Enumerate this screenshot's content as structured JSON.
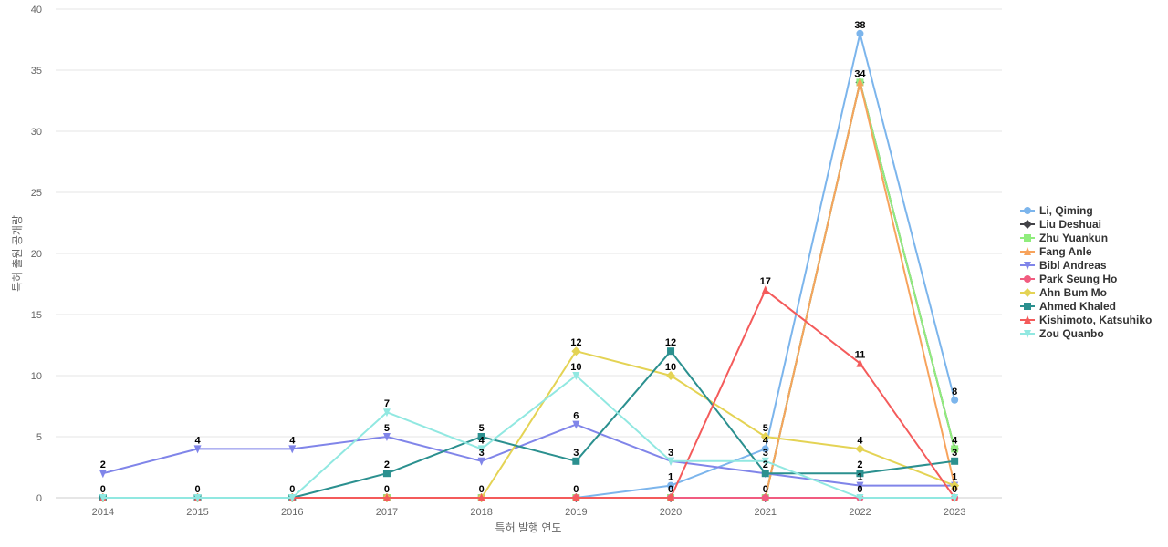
{
  "chart_data": {
    "type": "line",
    "title": "",
    "xlabel": "특허 발행 연도",
    "ylabel": "특허 출원 공개량",
    "ylim": [
      0,
      40
    ],
    "y_ticks": [
      0,
      5,
      10,
      15,
      20,
      25,
      30,
      35,
      40
    ],
    "grid": true,
    "legend_position": "right",
    "categories": [
      "2014",
      "2015",
      "2016",
      "2017",
      "2018",
      "2019",
      "2020",
      "2021",
      "2022",
      "2023"
    ],
    "series": [
      {
        "name": "Li, Qiming",
        "color": "#7cb5ec",
        "marker": "circle",
        "values": [
          0,
          0,
          0,
          0,
          0,
          0,
          1,
          4,
          38,
          8
        ]
      },
      {
        "name": "Liu Deshuai",
        "color": "#434348",
        "marker": "diamond",
        "values": [
          0,
          0,
          0,
          0,
          0,
          0,
          0,
          0,
          34,
          4
        ]
      },
      {
        "name": "Zhu Yuankun",
        "color": "#90ed7d",
        "marker": "square",
        "values": [
          0,
          0,
          0,
          0,
          0,
          0,
          0,
          0,
          34,
          4
        ]
      },
      {
        "name": "Fang Anle",
        "color": "#f7a35c",
        "marker": "triangle",
        "values": [
          0,
          0,
          0,
          0,
          0,
          0,
          0,
          0,
          34,
          1
        ]
      },
      {
        "name": "Bibl Andreas",
        "color": "#8085e9",
        "marker": "triangle-down",
        "values": [
          2,
          4,
          4,
          5,
          3,
          6,
          3,
          2,
          1,
          1
        ]
      },
      {
        "name": "Park Seung Ho",
        "color": "#f15c80",
        "marker": "circle",
        "values": [
          0,
          0,
          0,
          0,
          0,
          0,
          0,
          0,
          0,
          0
        ]
      },
      {
        "name": "Ahn Bum Mo",
        "color": "#e4d354",
        "marker": "diamond",
        "values": [
          0,
          0,
          0,
          0,
          0,
          12,
          10,
          5,
          4,
          1
        ]
      },
      {
        "name": "Ahmed Khaled",
        "color": "#2b908f",
        "marker": "square",
        "values": [
          0,
          0,
          0,
          2,
          5,
          3,
          12,
          2,
          2,
          3
        ]
      },
      {
        "name": "Kishimoto, Katsuhiko",
        "color": "#f45b5b",
        "marker": "triangle",
        "values": [
          0,
          0,
          0,
          0,
          0,
          0,
          0,
          17,
          11,
          0
        ]
      },
      {
        "name": "Zou Quanbo",
        "color": "#91e8e1",
        "marker": "triangle-down",
        "values": [
          0,
          0,
          0,
          7,
          4,
          10,
          3,
          3,
          0,
          0
        ]
      }
    ],
    "data_labels": [
      {
        "category": "2014",
        "value": 2,
        "text": "2"
      },
      {
        "category": "2014",
        "value": 0,
        "text": "0"
      },
      {
        "category": "2015",
        "value": 4,
        "text": "4"
      },
      {
        "category": "2015",
        "value": 0,
        "text": "0"
      },
      {
        "category": "2016",
        "value": 4,
        "text": "4"
      },
      {
        "category": "2016",
        "value": 0,
        "text": "0"
      },
      {
        "category": "2017",
        "value": 7,
        "text": "7"
      },
      {
        "category": "2017",
        "value": 5,
        "text": "5"
      },
      {
        "category": "2017",
        "value": 2,
        "text": "2"
      },
      {
        "category": "2017",
        "value": 0,
        "text": "0"
      },
      {
        "category": "2018",
        "value": 5,
        "text": "5"
      },
      {
        "category": "2018",
        "value": 4,
        "text": "4"
      },
      {
        "category": "2018",
        "value": 3,
        "text": "3"
      },
      {
        "category": "2018",
        "value": 0,
        "text": "0"
      },
      {
        "category": "2019",
        "value": 12,
        "text": "12"
      },
      {
        "category": "2019",
        "value": 10,
        "text": "10"
      },
      {
        "category": "2019",
        "value": 6,
        "text": "6"
      },
      {
        "category": "2019",
        "value": 3,
        "text": "3"
      },
      {
        "category": "2019",
        "value": 0,
        "text": "0"
      },
      {
        "category": "2020",
        "value": 12,
        "text": "12"
      },
      {
        "category": "2020",
        "value": 10,
        "text": "10"
      },
      {
        "category": "2020",
        "value": 3,
        "text": "3"
      },
      {
        "category": "2020",
        "value": 1,
        "text": "1"
      },
      {
        "category": "2020",
        "value": 0,
        "text": "0"
      },
      {
        "category": "2021",
        "value": 17,
        "text": "17"
      },
      {
        "category": "2021",
        "value": 5,
        "text": "5"
      },
      {
        "category": "2021",
        "value": 4,
        "text": "4"
      },
      {
        "category": "2021",
        "value": 3,
        "text": "3"
      },
      {
        "category": "2021",
        "value": 2,
        "text": "2"
      },
      {
        "category": "2021",
        "value": 0,
        "text": "0"
      },
      {
        "category": "2022",
        "value": 38,
        "text": "38"
      },
      {
        "category": "2022",
        "value": 34,
        "text": "34"
      },
      {
        "category": "2022",
        "value": 11,
        "text": "11"
      },
      {
        "category": "2022",
        "value": 4,
        "text": "4"
      },
      {
        "category": "2022",
        "value": 2,
        "text": "2"
      },
      {
        "category": "2022",
        "value": 1,
        "text": "1"
      },
      {
        "category": "2022",
        "value": 0,
        "text": "0"
      },
      {
        "category": "2023",
        "value": 8,
        "text": "8"
      },
      {
        "category": "2023",
        "value": 4,
        "text": "4"
      },
      {
        "category": "2023",
        "value": 3,
        "text": "3"
      },
      {
        "category": "2023",
        "value": 1,
        "text": "1"
      },
      {
        "category": "2023",
        "value": 0,
        "text": "0"
      }
    ]
  }
}
